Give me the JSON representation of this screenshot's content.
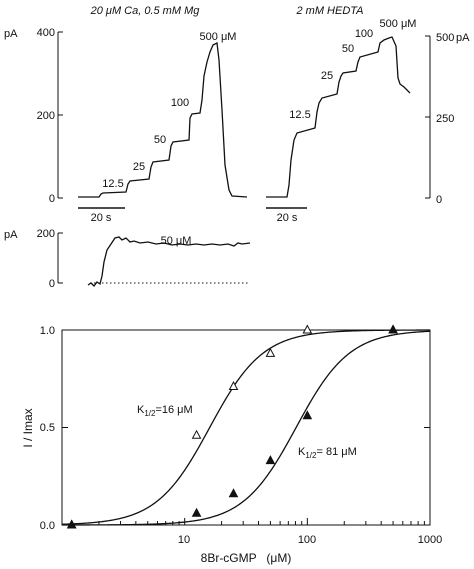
{
  "top_left": {
    "title": "20 μM Ca, 0.5 mM Mg",
    "unit": "pA",
    "yticks": [
      "400",
      "200",
      "0"
    ],
    "scale_label": "20 s",
    "labels": [
      "12.5",
      "25",
      "50",
      "100",
      "500 μM"
    ]
  },
  "top_right": {
    "title": "2 mM HEDTA",
    "unit": "pA",
    "yticks": [
      "500",
      "250",
      "0"
    ],
    "scale_label": "20 s",
    "labels": [
      "12.5",
      "25",
      "50",
      "100",
      "500 μM"
    ]
  },
  "middle": {
    "unit": "pA",
    "yticks": [
      "200",
      "0"
    ],
    "label": "50 μM"
  },
  "bottom": {
    "ylabel": "I / Imax",
    "xlabel": "8Br-cGMP   (μM)",
    "xticks": [
      "10",
      "100",
      "1000"
    ],
    "yticks": [
      "1.0",
      "0.5",
      "0.0"
    ],
    "k_open": {
      "prefix": "K",
      "sub": "1/2",
      "suffix": "=16 μM"
    },
    "k_filled": {
      "prefix": "K",
      "sub": "1/2",
      "suffix": "= 81 μM"
    }
  },
  "chart_data": {
    "type": "scatter",
    "xlabel": "8Br-cGMP   (μM)",
    "ylabel": "I / Imax",
    "xscale": "log",
    "xlim": [
      1,
      1000
    ],
    "ylim": [
      0,
      1
    ],
    "series": [
      {
        "name": "K1/2=16 μM",
        "marker": "open-triangle",
        "x": [
          1.2,
          12.5,
          25,
          50,
          100,
          500
        ],
        "y": [
          0.0,
          0.46,
          0.71,
          0.88,
          1.0,
          1.0
        ],
        "fit": {
          "k_half": 16,
          "hill": 2
        }
      },
      {
        "name": "K1/2= 81 μM",
        "marker": "filled-triangle",
        "x": [
          1.2,
          12.5,
          25,
          50,
          100,
          500
        ],
        "y": [
          0.0,
          0.06,
          0.16,
          0.33,
          0.56,
          1.0
        ],
        "fit": {
          "k_half": 81,
          "hill": 2
        }
      }
    ]
  }
}
